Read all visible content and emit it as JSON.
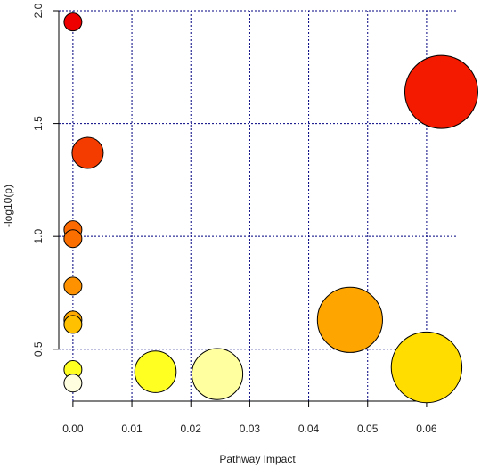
{
  "chart_data": {
    "type": "scatter",
    "xlabel": "Pathway Impact",
    "ylabel": "-log10(p)",
    "xlim": [
      -0.0024,
      0.065
    ],
    "ylim": [
      0.27,
      2.0
    ],
    "x_ticks": [
      0.0,
      0.01,
      0.02,
      0.03,
      0.04,
      0.05,
      0.06
    ],
    "x_tick_labels": [
      "0.00",
      "0.01",
      "0.02",
      "0.03",
      "0.04",
      "0.05",
      "0.06"
    ],
    "y_ticks": [
      0.5,
      1.0,
      1.5,
      2.0
    ],
    "y_tick_labels": [
      "0.5",
      "1.0",
      "1.5",
      "2.0"
    ],
    "grid": true,
    "grid_color": "#000080",
    "points": [
      {
        "x": 0.0,
        "y": 1.95,
        "size": 0.3,
        "color": "#ee0000"
      },
      {
        "x": 0.0625,
        "y": 1.64,
        "size": 1.0,
        "color": "#f31a00"
      },
      {
        "x": 0.0025,
        "y": 1.37,
        "size": 0.47,
        "color": "#f53c00"
      },
      {
        "x": 0.0,
        "y": 1.03,
        "size": 0.3,
        "color": "#fa6a00"
      },
      {
        "x": 0.0,
        "y": 0.99,
        "size": 0.3,
        "color": "#fb6f00"
      },
      {
        "x": 0.0,
        "y": 0.78,
        "size": 0.3,
        "color": "#fd9100"
      },
      {
        "x": 0.0,
        "y": 0.63,
        "size": 0.3,
        "color": "#fea800"
      },
      {
        "x": 0.0,
        "y": 0.61,
        "size": 0.3,
        "color": "#ffc000"
      },
      {
        "x": 0.047,
        "y": 0.63,
        "size": 0.9,
        "color": "#ffa500"
      },
      {
        "x": 0.06,
        "y": 0.42,
        "size": 0.97,
        "color": "#ffdd00"
      },
      {
        "x": 0.014,
        "y": 0.4,
        "size": 0.6,
        "color": "#ffff22"
      },
      {
        "x": 0.0245,
        "y": 0.39,
        "size": 0.72,
        "color": "#ffffa0"
      },
      {
        "x": 0.0,
        "y": 0.41,
        "size": 0.3,
        "color": "#ffff22"
      },
      {
        "x": 0.0,
        "y": 0.35,
        "size": 0.3,
        "color": "#ffffe0"
      }
    ]
  }
}
